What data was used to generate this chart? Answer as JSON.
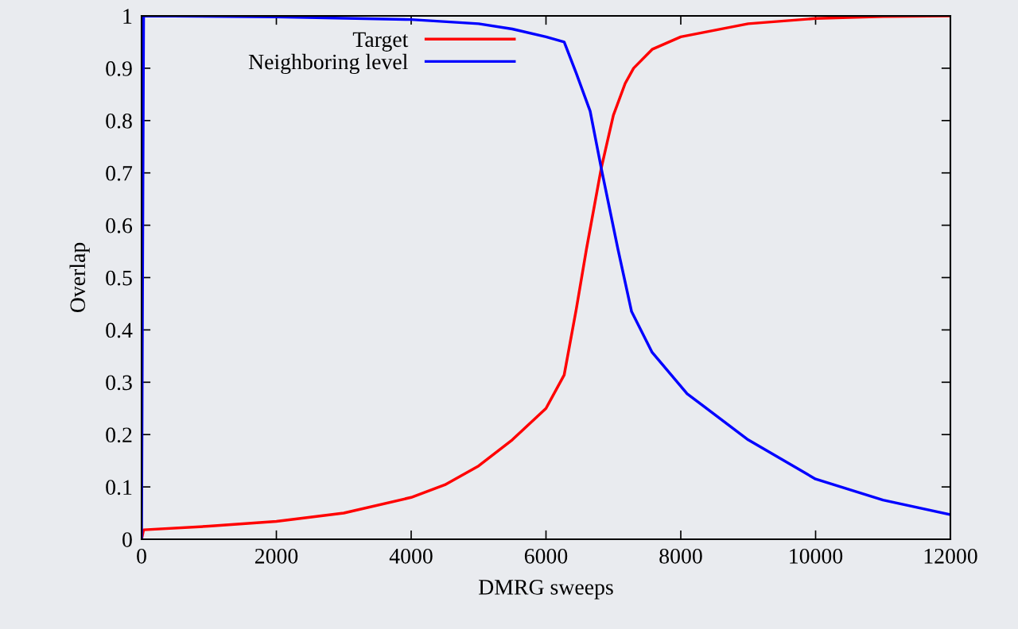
{
  "chart_data": {
    "type": "line",
    "xlabel": "DMRG sweeps",
    "ylabel": "Overlap",
    "xlim": [
      0,
      12000
    ],
    "ylim": [
      0,
      1
    ],
    "xticks": [
      0,
      2000,
      4000,
      6000,
      8000,
      10000,
      12000
    ],
    "yticks": [
      0,
      0.1,
      0.2,
      0.3,
      0.4,
      0.5,
      0.6,
      0.7,
      0.8,
      0.9,
      1
    ],
    "grid": false,
    "legend": "top",
    "marker": "none",
    "line_style": "solid",
    "series": [
      {
        "name": "Target",
        "color": "#ff0000",
        "x": [
          0,
          30,
          1000,
          2000,
          3000,
          4000,
          4500,
          5000,
          5500,
          6000,
          6270,
          6450,
          6600,
          6820,
          7000,
          7175,
          7300,
          7575,
          8000,
          9000,
          10000,
          11000,
          12000
        ],
        "values": [
          0,
          0.018,
          0.025,
          0.034,
          0.05,
          0.08,
          0.104,
          0.14,
          0.19,
          0.25,
          0.314,
          0.44,
          0.554,
          0.709,
          0.81,
          0.871,
          0.9,
          0.936,
          0.96,
          0.985,
          0.995,
          0.999,
          1.0
        ]
      },
      {
        "name": "Neighboring level",
        "color": "#0000ff",
        "x": [
          0,
          30,
          2000,
          4000,
          5000,
          5500,
          6000,
          6270,
          6450,
          6655,
          6820,
          7068,
          7270,
          7575,
          8095,
          9000,
          10000,
          11000,
          12000
        ],
        "values": [
          0,
          1.0,
          0.998,
          0.993,
          0.985,
          0.975,
          0.96,
          0.95,
          0.89,
          0.818,
          0.709,
          0.554,
          0.435,
          0.357,
          0.278,
          0.19,
          0.115,
          0.075,
          0.047
        ]
      }
    ]
  }
}
